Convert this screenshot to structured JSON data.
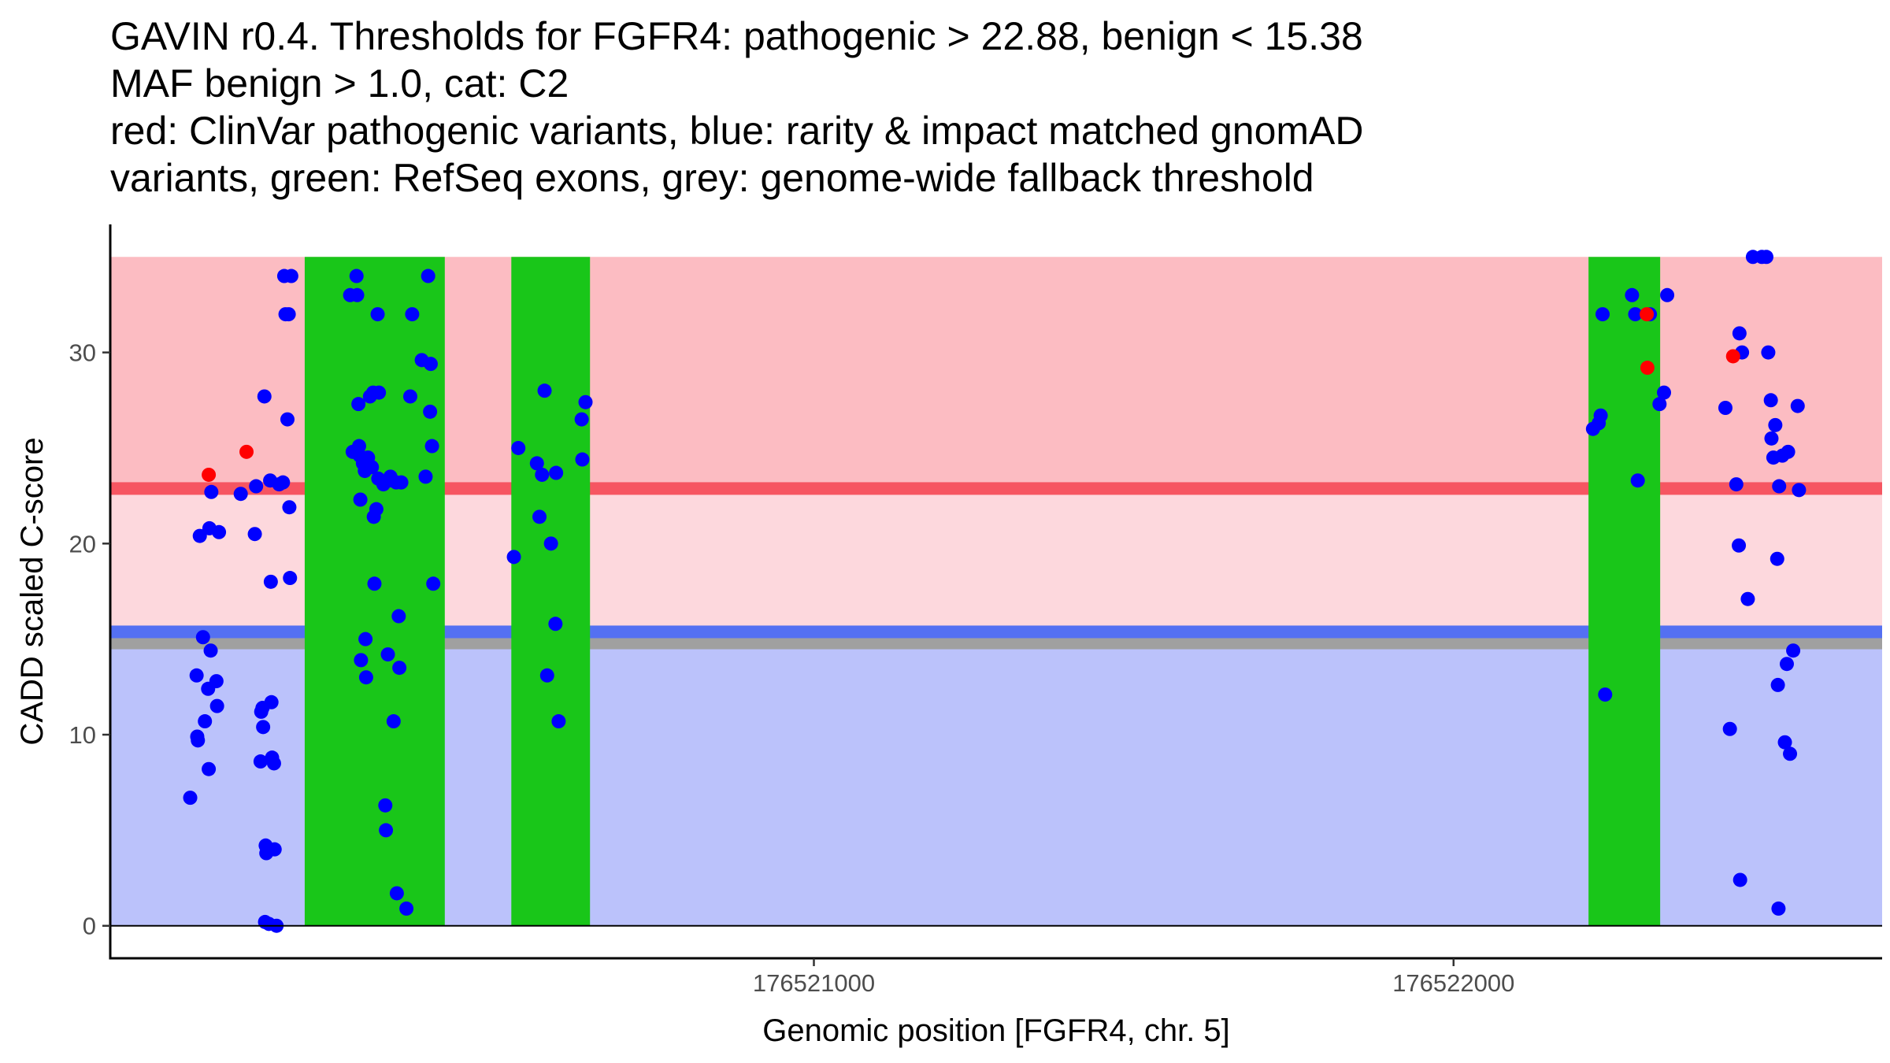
{
  "chart_data": {
    "type": "scatter",
    "title_lines": [
      "GAVIN r0.4. Thresholds for FGFR4: pathogenic > 22.88, benign < 15.38",
      "MAF benign > 1.0, cat: C2",
      "red: ClinVar pathogenic variants, blue: rarity & impact matched gnomAD",
      "variants, green: RefSeq exons, grey: genome-wide fallback threshold"
    ],
    "xlabel": "Genomic position [FGFR4, chr. 5]",
    "ylabel": "CADD scaled C-score",
    "xlim": [
      176519900,
      176522670
    ],
    "ylim": [
      -1.7,
      36.7
    ],
    "x_ticks": [
      176521000,
      176522000
    ],
    "x_tick_labels": [
      "176521000",
      "176522000"
    ],
    "y_ticks": [
      0,
      10,
      20,
      30
    ],
    "y_tick_labels": [
      "0",
      "10",
      "20",
      "30"
    ],
    "grid": false,
    "thresholds": {
      "pathogenic": 22.88,
      "benign": 15.38,
      "genome_wide_fallback": 14.8,
      "max_score": 35
    },
    "colors": {
      "pathogenic_zone": "#fcbcc2",
      "middle_zone": "#fdd8dd",
      "benign_zone": "#bbc2fb",
      "pathogenic_line": "#f65561",
      "benign_line": "#5470f2",
      "fallback_line": "#a0a0a0",
      "exon": "#19c619",
      "gnomad_point": "#0000ff",
      "clinvar_point": "#ff0000"
    },
    "exons": [
      {
        "start": 176520204,
        "end": 176520423
      },
      {
        "start": 176520527,
        "end": 176520650
      },
      {
        "start": 176522211,
        "end": 176522323
      }
    ],
    "series": [
      {
        "name": "ClinVar pathogenic",
        "color": "#ff0000",
        "points": [
          [
            176520054,
            23.6
          ],
          [
            176520113,
            24.8
          ],
          [
            176522302,
            32.0
          ],
          [
            176522303,
            29.2
          ],
          [
            176522437,
            29.8
          ]
        ]
      },
      {
        "name": "gnomAD matched",
        "color": "#0000ff",
        "points": [
          [
            176520025,
            6.7
          ],
          [
            176520035,
            13.1
          ],
          [
            176520036,
            9.9
          ],
          [
            176520037,
            9.7
          ],
          [
            176520040,
            20.4
          ],
          [
            176520045,
            15.1
          ],
          [
            176520048,
            10.7
          ],
          [
            176520053,
            12.4
          ],
          [
            176520054,
            8.2
          ],
          [
            176520055,
            20.8
          ],
          [
            176520057,
            14.4
          ],
          [
            176520058,
            22.7
          ],
          [
            176520066,
            12.8
          ],
          [
            176520067,
            11.5
          ],
          [
            176520070,
            20.6
          ],
          [
            176520104,
            22.6
          ],
          [
            176520126,
            20.5
          ],
          [
            176520128,
            23.0
          ],
          [
            176520135,
            8.6
          ],
          [
            176520136,
            11.2
          ],
          [
            176520138,
            11.4
          ],
          [
            176520139,
            10.4
          ],
          [
            176520141,
            27.7
          ],
          [
            176520142,
            0.2
          ],
          [
            176520143,
            4.2
          ],
          [
            176520144,
            3.8
          ],
          [
            176520148,
            0.1
          ],
          [
            176520150,
            23.3
          ],
          [
            176520151,
            18.0
          ],
          [
            176520152,
            11.7
          ],
          [
            176520153,
            8.8
          ],
          [
            176520156,
            8.5
          ],
          [
            176520157,
            4.0
          ],
          [
            176520160,
            0.0
          ],
          [
            176520164,
            23.1
          ],
          [
            176520170,
            23.2
          ],
          [
            176520172,
            34.0
          ],
          [
            176520174,
            32.0
          ],
          [
            176520177,
            26.5
          ],
          [
            176520179,
            32.0
          ],
          [
            176520180,
            21.9
          ],
          [
            176520181,
            18.2
          ],
          [
            176520183,
            34.0
          ],
          [
            176520275,
            33.0
          ],
          [
            176520279,
            24.8
          ],
          [
            176520285,
            34.0
          ],
          [
            176520286,
            33.0
          ],
          [
            176520288,
            27.3
          ],
          [
            176520289,
            25.1
          ],
          [
            176520290,
            24.6
          ],
          [
            176520291,
            22.3
          ],
          [
            176520292,
            13.9
          ],
          [
            176520295,
            24.2
          ],
          [
            176520298,
            23.8
          ],
          [
            176520299,
            15.0
          ],
          [
            176520300,
            13.0
          ],
          [
            176520303,
            24.5
          ],
          [
            176520306,
            27.7
          ],
          [
            176520309,
            24.0
          ],
          [
            176520311,
            27.9
          ],
          [
            176520312,
            21.4
          ],
          [
            176520313,
            17.9
          ],
          [
            176520316,
            21.8
          ],
          [
            176520318,
            32.0
          ],
          [
            176520319,
            23.4
          ],
          [
            176520320,
            27.9
          ],
          [
            176520327,
            23.1
          ],
          [
            176520330,
            6.3
          ],
          [
            176520331,
            5.0
          ],
          [
            176520334,
            14.2
          ],
          [
            176520336,
            23.3
          ],
          [
            176520338,
            23.5
          ],
          [
            176520343,
            10.7
          ],
          [
            176520347,
            23.2
          ],
          [
            176520348,
            1.7
          ],
          [
            176520351,
            16.2
          ],
          [
            176520352,
            13.5
          ],
          [
            176520355,
            23.2
          ],
          [
            176520363,
            0.9
          ],
          [
            176520369,
            27.7
          ],
          [
            176520372,
            32.0
          ],
          [
            176520387,
            29.6
          ],
          [
            176520393,
            23.5
          ],
          [
            176520397,
            34.0
          ],
          [
            176520400,
            26.9
          ],
          [
            176520401,
            29.4
          ],
          [
            176520403,
            25.1
          ],
          [
            176520405,
            17.9
          ],
          [
            176520531,
            19.3
          ],
          [
            176520538,
            25.0
          ],
          [
            176520567,
            24.2
          ],
          [
            176520571,
            21.4
          ],
          [
            176520575,
            23.6
          ],
          [
            176520579,
            28.0
          ],
          [
            176520583,
            13.1
          ],
          [
            176520589,
            20.0
          ],
          [
            176520596,
            15.8
          ],
          [
            176520597,
            23.7
          ],
          [
            176520601,
            10.7
          ],
          [
            176520637,
            26.5
          ],
          [
            176520638,
            24.4
          ],
          [
            176520643,
            27.4
          ],
          [
            176522218,
            26.0
          ],
          [
            176522227,
            26.3
          ],
          [
            176522230,
            26.7
          ],
          [
            176522233,
            32.0
          ],
          [
            176522237,
            12.1
          ],
          [
            176522279,
            33.0
          ],
          [
            176522284,
            32.0
          ],
          [
            176522288,
            23.3
          ],
          [
            176522307,
            32.0
          ],
          [
            176522322,
            27.3
          ],
          [
            176522329,
            27.9
          ],
          [
            176522334,
            33.0
          ],
          [
            176522425,
            27.1
          ],
          [
            176522432,
            10.3
          ],
          [
            176522442,
            23.1
          ],
          [
            176522446,
            19.9
          ],
          [
            176522447,
            31.0
          ],
          [
            176522448,
            2.4
          ],
          [
            176522451,
            30.0
          ],
          [
            176522460,
            17.1
          ],
          [
            176522468,
            35.0
          ],
          [
            176522482,
            35.0
          ],
          [
            176522489,
            35.0
          ],
          [
            176522492,
            30.0
          ],
          [
            176522496,
            27.5
          ],
          [
            176522497,
            25.5
          ],
          [
            176522500,
            24.5
          ],
          [
            176522503,
            26.2
          ],
          [
            176522506,
            19.2
          ],
          [
            176522507,
            12.6
          ],
          [
            176522508,
            0.9
          ],
          [
            176522509,
            23.0
          ],
          [
            176522514,
            24.6
          ],
          [
            176522518,
            9.6
          ],
          [
            176522521,
            13.7
          ],
          [
            176522523,
            24.8
          ],
          [
            176522526,
            9.0
          ],
          [
            176522531,
            14.4
          ],
          [
            176522538,
            27.2
          ],
          [
            176522540,
            22.8
          ]
        ]
      }
    ]
  }
}
